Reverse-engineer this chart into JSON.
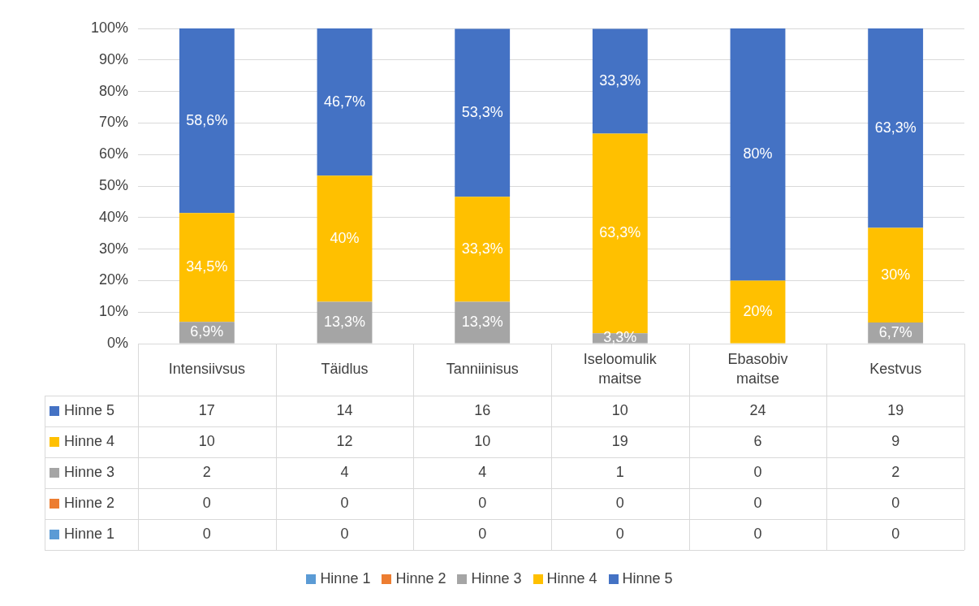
{
  "chart_data": {
    "type": "bar",
    "stacked": true,
    "categories": [
      "Intensiivsus",
      "Täidlus",
      "Tanniinisus",
      "Iseloomulik maitse",
      "Ebasobiv maitse",
      "Kestvus"
    ],
    "series": [
      {
        "name": "Hinne 1",
        "color": "#5b9bd5",
        "values": [
          0,
          0,
          0,
          0,
          0,
          0
        ],
        "value_labels": [
          null,
          null,
          null,
          null,
          null,
          null
        ]
      },
      {
        "name": "Hinne 2",
        "color": "#ed7d31",
        "values": [
          0,
          0,
          0,
          0,
          0,
          0
        ],
        "value_labels": [
          null,
          null,
          null,
          null,
          null,
          null
        ]
      },
      {
        "name": "Hinne 3",
        "color": "#a5a5a5",
        "values": [
          6.9,
          13.3,
          13.3,
          3.3,
          0,
          6.7
        ],
        "value_labels": [
          "6,9%",
          "13,3%",
          "13,3%",
          "3,3%",
          null,
          "6,7%"
        ]
      },
      {
        "name": "Hinne 4",
        "color": "#ffc000",
        "values": [
          34.5,
          40,
          33.3,
          63.3,
          20,
          30
        ],
        "value_labels": [
          "34,5%",
          "40%",
          "33,3%",
          "63,3%",
          "20%",
          "30%"
        ]
      },
      {
        "name": "Hinne 5",
        "color": "#4472c4",
        "values": [
          58.6,
          46.7,
          53.3,
          33.3,
          80,
          63.3
        ],
        "value_labels": [
          "58,6%",
          "46,7%",
          "53,3%",
          "33,3%",
          "80%",
          "63,3%"
        ]
      }
    ],
    "ylim": [
      0,
      100
    ],
    "yticks": [
      {
        "value": 0,
        "label": "0%"
      },
      {
        "value": 10,
        "label": "10%"
      },
      {
        "value": 20,
        "label": "20%"
      },
      {
        "value": 30,
        "label": "30%"
      },
      {
        "value": 40,
        "label": "40%"
      },
      {
        "value": 50,
        "label": "50%"
      },
      {
        "value": 60,
        "label": "60%"
      },
      {
        "value": 70,
        "label": "70%"
      },
      {
        "value": 80,
        "label": "80%"
      },
      {
        "value": 90,
        "label": "90%"
      },
      {
        "value": 100,
        "label": "100%"
      }
    ],
    "grid": "y",
    "legend": "bottom",
    "annotations": [
      "17",
      "14",
      "16",
      "10",
      "24",
      "19",
      "10",
      "12",
      "10",
      "19",
      "6",
      "9",
      "2",
      "4",
      "4",
      "1",
      "0",
      "2",
      "0",
      "0",
      "0",
      "0",
      "0",
      "0",
      "0",
      "0",
      "0",
      "0",
      "0",
      "0"
    ]
  }
}
